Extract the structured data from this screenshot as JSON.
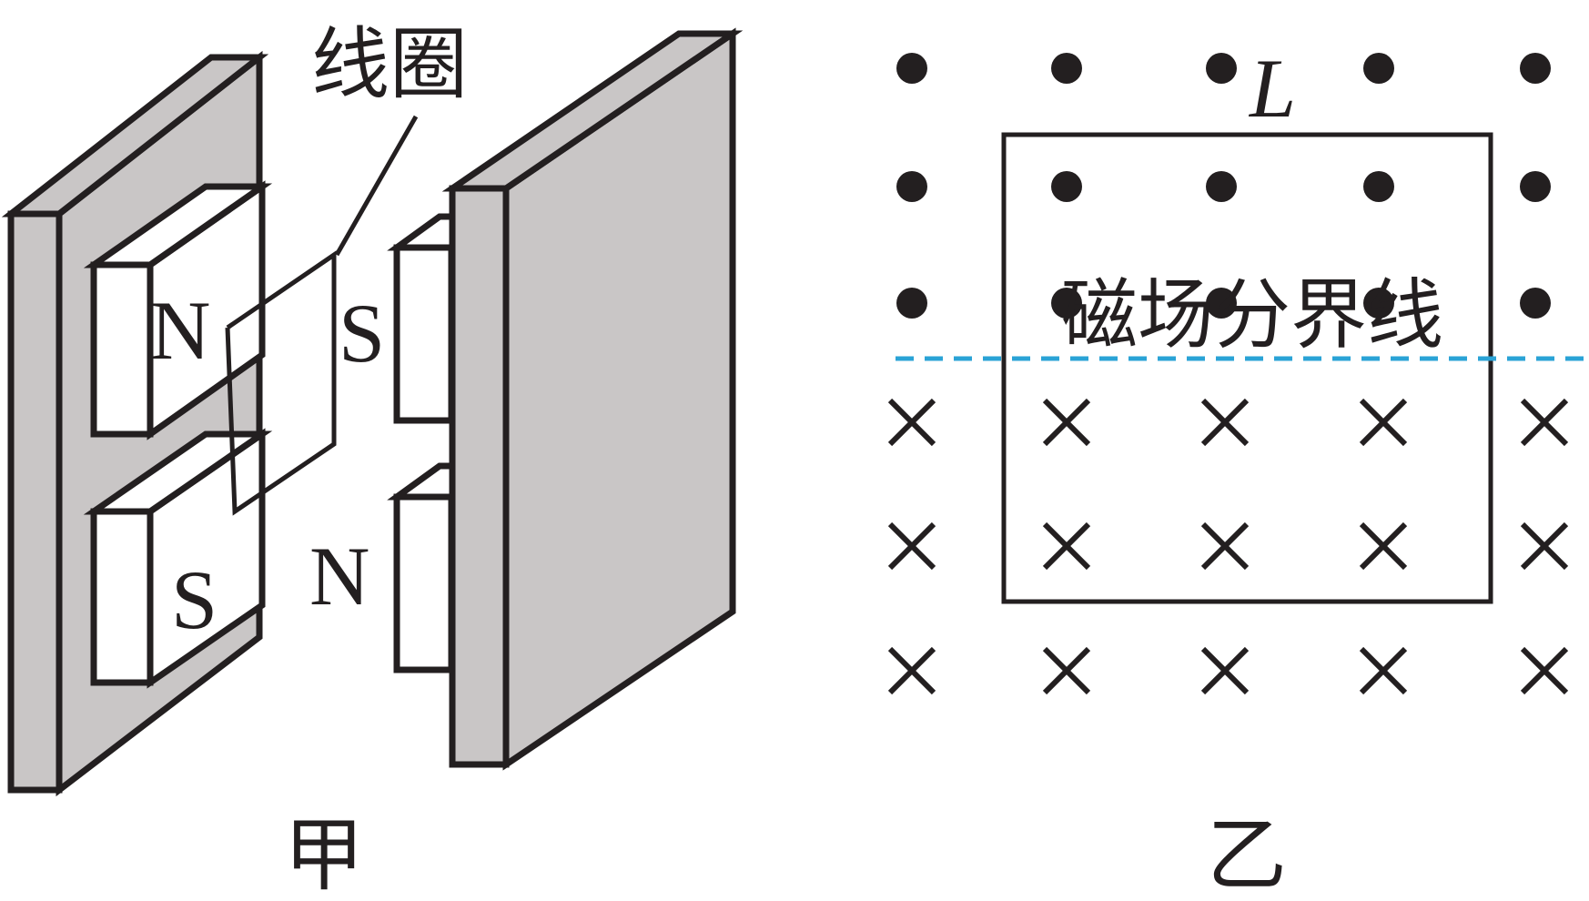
{
  "figure_a": {
    "caption": "甲",
    "coil_label": "线圈",
    "left_upper_pole": "N",
    "left_lower_pole": "S",
    "right_upper_pole": "S",
    "right_lower_pole": "N"
  },
  "figure_b": {
    "caption": "乙",
    "side_label": "L",
    "boundary_label": "磁场分界线",
    "dot_rows": 3,
    "cross_rows": 3,
    "columns": 5,
    "boundary_color": "#2aa3d6"
  },
  "icons": {
    "dot": "magnetic-field-out-of-page-icon",
    "cross": "magnetic-field-into-page-icon"
  }
}
